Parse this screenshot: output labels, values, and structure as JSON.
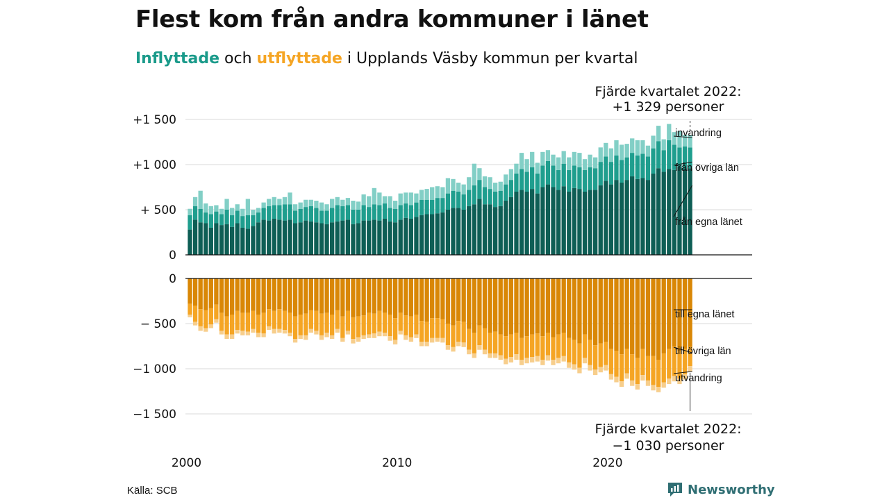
{
  "title": "Flest kom från andra kommuner i länet",
  "subtitle": {
    "in_word": "Inflyttade",
    "mid": " och ",
    "out_word": "utflyttade",
    "rest": " i Upplands Väsby kommun per kvartal"
  },
  "source": "Källa: SCB",
  "brand": "Newsworthy",
  "colors": {
    "in_own": "#0e5e55",
    "in_other": "#1f9e8e",
    "in_imm": "#82cfc6",
    "out_own": "#d98706",
    "out_other": "#f5a524",
    "out_emig": "#f7ce8c",
    "brand": "#2f6e73"
  },
  "chart_data": [
    {
      "type": "bar",
      "stacked": true,
      "x_start": "2000Q1",
      "frequency": "quarter",
      "ylim": [
        0,
        1500
      ],
      "yticks": [
        "+1 500",
        "+1 000",
        "+  500",
        "0"
      ],
      "ytick_values": [
        1500,
        1000,
        500,
        0
      ],
      "grid": true,
      "series": [
        {
          "name": "från egna länet",
          "values": [
            280,
            390,
            360,
            350,
            300,
            350,
            330,
            340,
            310,
            350,
            300,
            290,
            320,
            360,
            390,
            380,
            400,
            390,
            380,
            390,
            350,
            360,
            380,
            370,
            360,
            350,
            340,
            360,
            370,
            380,
            390,
            340,
            350,
            380,
            380,
            390,
            380,
            400,
            370,
            360,
            390,
            410,
            400,
            420,
            440,
            450,
            450,
            460,
            470,
            500,
            520,
            520,
            500,
            540,
            560,
            620,
            560,
            560,
            530,
            540,
            600,
            640,
            700,
            720,
            700,
            730,
            680,
            750,
            780,
            750,
            720,
            760,
            700,
            740,
            730,
            700,
            720,
            720,
            770,
            820,
            780,
            830,
            800,
            830,
            870,
            840,
            850,
            830,
            900,
            960,
            920,
            950,
            940,
            980,
            960,
            960
          ]
        },
        {
          "name": "från övriga län",
          "values": [
            160,
            150,
            150,
            120,
            150,
            130,
            120,
            160,
            130,
            140,
            130,
            150,
            120,
            110,
            130,
            160,
            150,
            160,
            180,
            170,
            140,
            150,
            150,
            170,
            160,
            140,
            150,
            160,
            180,
            160,
            160,
            160,
            150,
            170,
            150,
            170,
            170,
            170,
            150,
            150,
            160,
            160,
            150,
            160,
            170,
            160,
            160,
            170,
            160,
            180,
            190,
            180,
            170,
            180,
            210,
            210,
            190,
            170,
            170,
            170,
            180,
            190,
            200,
            230,
            220,
            240,
            220,
            240,
            260,
            240,
            220,
            250,
            240,
            250,
            240,
            240,
            250,
            240,
            260,
            270,
            250,
            270,
            250,
            250,
            260,
            260,
            270,
            260,
            280,
            300,
            240,
            320,
            280,
            210,
            240,
            229
          ]
        },
        {
          "name": "invandring",
          "values": [
            70,
            100,
            200,
            100,
            90,
            70,
            60,
            120,
            80,
            70,
            80,
            180,
            60,
            50,
            60,
            80,
            90,
            70,
            80,
            130,
            70,
            70,
            80,
            70,
            80,
            90,
            70,
            100,
            90,
            70,
            80,
            100,
            90,
            120,
            120,
            180,
            140,
            80,
            130,
            90,
            130,
            120,
            140,
            100,
            110,
            120,
            140,
            130,
            120,
            170,
            130,
            100,
            110,
            140,
            240,
            130,
            120,
            130,
            100,
            100,
            110,
            120,
            110,
            180,
            140,
            170,
            120,
            150,
            120,
            120,
            140,
            140,
            140,
            150,
            160,
            120,
            140,
            120,
            160,
            150,
            150,
            170,
            170,
            150,
            160,
            170,
            150,
            120,
            140,
            170,
            120,
            180,
            140,
            180,
            130,
            140
          ]
        }
      ]
    },
    {
      "type": "bar",
      "stacked": true,
      "x_start": "2000Q1",
      "frequency": "quarter",
      "ylim": [
        -1500,
        0
      ],
      "yticks": [
        "0",
        "−  500",
        "−1 000",
        "−1 500"
      ],
      "ytick_values": [
        0,
        -500,
        -1000,
        -1500
      ],
      "grid": true,
      "series": [
        {
          "name": "till egna länet",
          "values": [
            -280,
            -300,
            -340,
            -350,
            -330,
            -290,
            -380,
            -420,
            -400,
            -360,
            -380,
            -380,
            -360,
            -400,
            -380,
            -340,
            -360,
            -340,
            -360,
            -380,
            -420,
            -400,
            -390,
            -350,
            -360,
            -390,
            -380,
            -400,
            -350,
            -420,
            -360,
            -430,
            -420,
            -410,
            -380,
            -390,
            -360,
            -380,
            -400,
            -440,
            -380,
            -410,
            -420,
            -400,
            -470,
            -480,
            -440,
            -440,
            -450,
            -500,
            -520,
            -470,
            -480,
            -560,
            -600,
            -520,
            -550,
            -600,
            -590,
            -620,
            -640,
            -620,
            -600,
            -660,
            -640,
            -620,
            -610,
            -640,
            -600,
            -650,
            -620,
            -600,
            -660,
            -680,
            -720,
            -620,
            -680,
            -740,
            -720,
            -700,
            -780,
            -800,
            -840,
            -780,
            -840,
            -880,
            -780,
            -860,
            -860,
            -900,
            -830,
            -780,
            -750,
            -800,
            -780,
            -760
          ]
        },
        {
          "name": "till övriga län",
          "values": [
            -120,
            -180,
            -190,
            -200,
            -180,
            -160,
            -200,
            -200,
            -220,
            -210,
            -200,
            -210,
            -200,
            -200,
            -230,
            -190,
            -200,
            -220,
            -210,
            -220,
            -250,
            -230,
            -240,
            -210,
            -220,
            -240,
            -220,
            -230,
            -210,
            -240,
            -220,
            -240,
            -230,
            -220,
            -240,
            -220,
            -230,
            -220,
            -240,
            -240,
            -200,
            -220,
            -230,
            -220,
            -230,
            -220,
            -220,
            -220,
            -210,
            -240,
            -240,
            -230,
            -230,
            -230,
            -230,
            -220,
            -240,
            -230,
            -240,
            -230,
            -250,
            -250,
            -240,
            -240,
            -240,
            -250,
            -250,
            -260,
            -250,
            -250,
            -260,
            -260,
            -270,
            -270,
            -270,
            -260,
            -280,
            -270,
            -260,
            -260,
            -280,
            -290,
            -300,
            -270,
            -290,
            -290,
            -290,
            -270,
            -320,
            -300,
            -320,
            -330,
            -330,
            -310,
            -280,
            -210
          ]
        },
        {
          "name": "utvandring",
          "values": [
            -30,
            -40,
            -50,
            -40,
            -40,
            -40,
            -40,
            -50,
            -50,
            -40,
            -50,
            -40,
            -40,
            -50,
            -40,
            -40,
            -50,
            -40,
            -40,
            -40,
            -40,
            -40,
            -50,
            -40,
            -40,
            -50,
            -50,
            -40,
            -40,
            -40,
            -40,
            -50,
            -50,
            -40,
            -40,
            -50,
            -50,
            -40,
            -50,
            -50,
            -40,
            -50,
            -50,
            -40,
            -50,
            -50,
            -50,
            -40,
            -50,
            -50,
            -50,
            -50,
            -50,
            -50,
            -50,
            -50,
            -50,
            -50,
            -50,
            -50,
            -60,
            -60,
            -60,
            -60,
            -60,
            -60,
            -60,
            -60,
            -60,
            -60,
            -60,
            -60,
            -60,
            -60,
            -60,
            -60,
            -60,
            -60,
            -60,
            -60,
            -60,
            -60,
            -60,
            -60,
            -60,
            -60,
            -60,
            -60,
            -60,
            -60,
            -60,
            -60,
            -60,
            -60,
            -60,
            -60
          ]
        }
      ]
    }
  ],
  "xaxis": {
    "ticks": [
      "2000",
      "2010",
      "2020"
    ],
    "tick_years": [
      2000,
      2010,
      2020
    ]
  },
  "annotations": {
    "top_line1": "Fjärde kvartalet 2022:",
    "top_line2": "+1 329 personer",
    "bottom_line1": "Fjärde kvartalet 2022:",
    "bottom_line2": "−1 030 personer"
  }
}
